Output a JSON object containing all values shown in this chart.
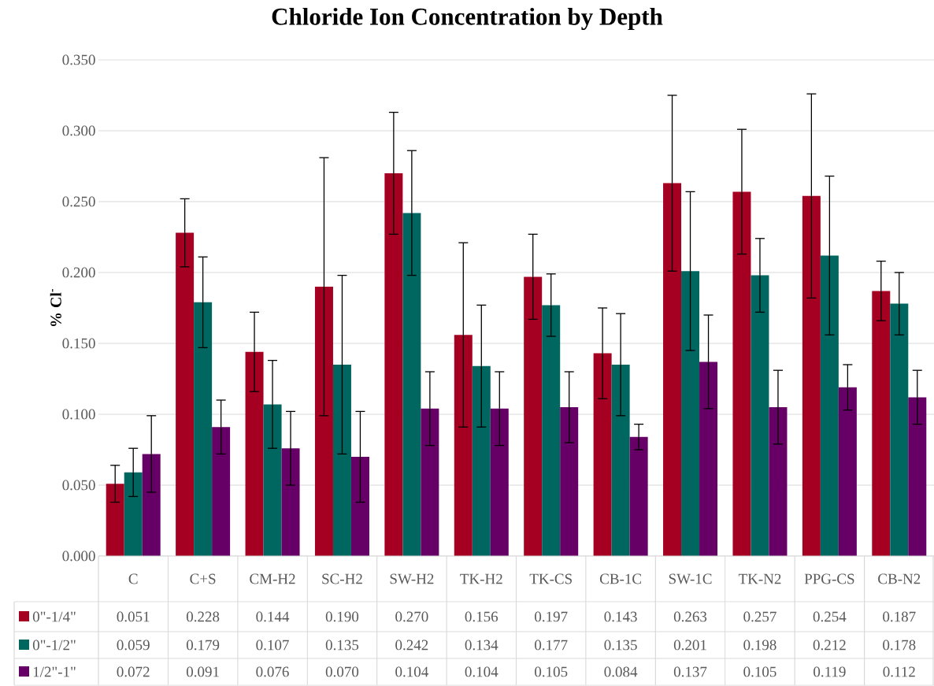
{
  "chart_data": {
    "type": "bar",
    "title": "Chloride Ion Concentration by Depth",
    "ylabel": "% Cl$^{-}$",
    "categories": [
      "C",
      "C+S",
      "CM-H2",
      "SC-H2",
      "SW-H2",
      "TK-H2",
      "TK-CS",
      "CB-1C",
      "SW-1C",
      "TK-N2",
      "PPG-CS",
      "CB-N2"
    ],
    "series": [
      {
        "name": "0\"-1/4\"",
        "color": "#a50021",
        "values": [
          0.051,
          0.228,
          0.144,
          0.19,
          0.27,
          0.156,
          0.197,
          0.143,
          0.263,
          0.257,
          0.254,
          0.187
        ],
        "errors": [
          0.013,
          0.024,
          0.028,
          0.091,
          0.043,
          0.065,
          0.03,
          0.032,
          0.062,
          0.044,
          0.072,
          0.021
        ],
        "value_labels": [
          "0.051",
          "0.228",
          "0.144",
          "0.190",
          "0.270",
          "0.156",
          "0.197",
          "0.143",
          "0.263",
          "0.257",
          "0.254",
          "0.187"
        ]
      },
      {
        "name": "0\"-1/2\"",
        "color": "#006660",
        "values": [
          0.059,
          0.179,
          0.107,
          0.135,
          0.242,
          0.134,
          0.177,
          0.135,
          0.201,
          0.198,
          0.212,
          0.178
        ],
        "errors": [
          0.017,
          0.032,
          0.031,
          0.063,
          0.044,
          0.043,
          0.022,
          0.036,
          0.056,
          0.026,
          0.056,
          0.022
        ],
        "value_labels": [
          "0.059",
          "0.179",
          "0.107",
          "0.135",
          "0.242",
          "0.134",
          "0.177",
          "0.135",
          "0.201",
          "0.198",
          "0.212",
          "0.178"
        ]
      },
      {
        "name": "1/2\"-1\"",
        "color": "#660066",
        "values": [
          0.072,
          0.091,
          0.076,
          0.07,
          0.104,
          0.104,
          0.105,
          0.084,
          0.137,
          0.105,
          0.119,
          0.112
        ],
        "errors": [
          0.027,
          0.019,
          0.026,
          0.032,
          0.026,
          0.026,
          0.025,
          0.009,
          0.033,
          0.026,
          0.016,
          0.019
        ],
        "value_labels": [
          "0.072",
          "0.091",
          "0.076",
          "0.070",
          "0.104",
          "0.104",
          "0.105",
          "0.084",
          "0.137",
          "0.105",
          "0.119",
          "0.112"
        ]
      }
    ],
    "ylim": [
      0,
      0.35
    ],
    "yticks": [
      {
        "value": 0,
        "label": "0.000"
      },
      {
        "value": 0.05,
        "label": "0.050"
      },
      {
        "value": 0.1,
        "label": "0.100"
      },
      {
        "value": 0.15,
        "label": "0.150"
      },
      {
        "value": 0.2,
        "label": "0.200"
      },
      {
        "value": 0.25,
        "label": "0.250"
      },
      {
        "value": 0.3,
        "label": "0.300"
      },
      {
        "value": 0.35,
        "label": "0.350"
      }
    ],
    "grid": "y",
    "legend": "bottom"
  }
}
